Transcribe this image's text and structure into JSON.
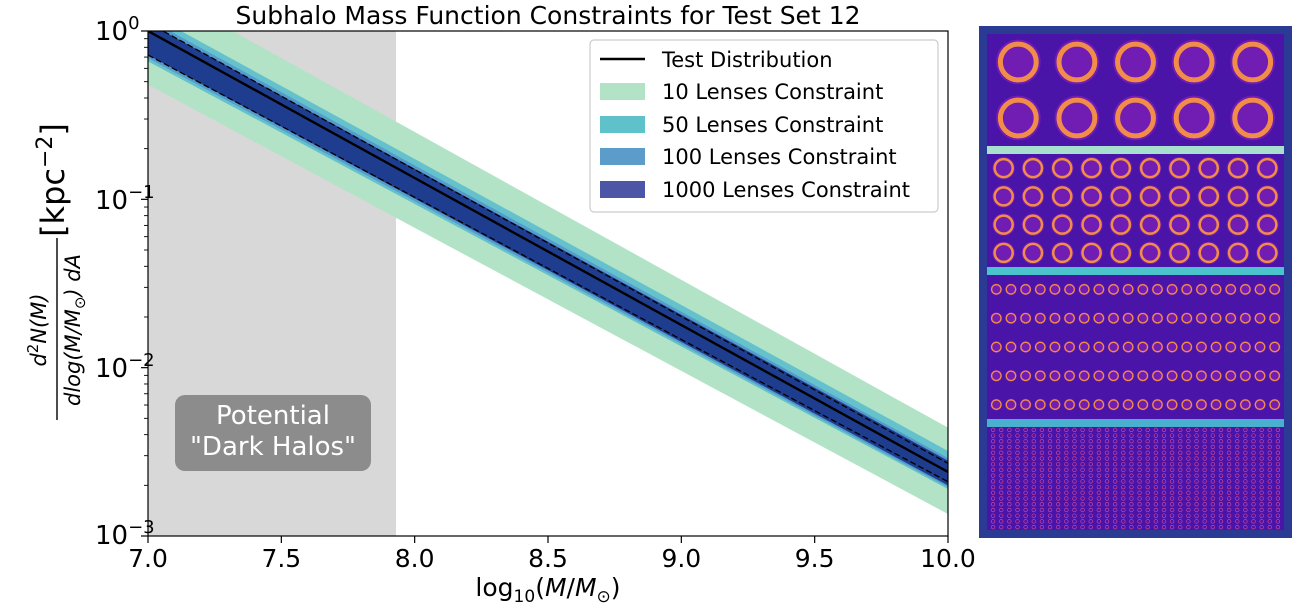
{
  "chart_data": {
    "type": "area",
    "title": "Subhalo Mass Function Constraints for Test Set 12",
    "xlabel": "log10(M/M⊙)",
    "ylabel": "d²N(M) / dlog(M/M⊙) dA [kpc⁻²]",
    "xlim": [
      7.0,
      10.0
    ],
    "ylim": [
      0.001,
      1.0
    ],
    "yscale": "log",
    "x_ticks": [
      7.0,
      7.5,
      8.0,
      8.5,
      9.0,
      9.5,
      10.0
    ],
    "x_tick_labels": [
      "7.0",
      "7.5",
      "8.0",
      "8.5",
      "9.0",
      "9.5",
      "10.0"
    ],
    "y_ticks": [
      0.001,
      0.01,
      0.1,
      1.0
    ],
    "shaded_region": {
      "x": [
        7.0,
        7.93
      ],
      "label_line1": "Potential",
      "label_line2": "\"Dark Halos\""
    },
    "legend_placement": "top-right",
    "series": [
      {
        "name": "Test Distribution",
        "kind": "line",
        "x": [
          7.0,
          10.0
        ],
        "y": [
          1.0,
          0.0024
        ]
      },
      {
        "name": "10 Lenses Constraint",
        "kind": "band",
        "color": "#b3e3c6",
        "x": [
          7.0,
          10.0
        ],
        "y_lower": [
          0.48,
          0.00135
        ],
        "y_upper": [
          1.9,
          0.0044
        ]
      },
      {
        "name": "50 Lenses Constraint",
        "kind": "band",
        "color": "#65c2cc",
        "x": [
          7.0,
          10.0
        ],
        "y_lower": [
          0.66,
          0.0019
        ],
        "y_upper": [
          1.28,
          0.0032
        ]
      },
      {
        "name": "100 Lenses Constraint",
        "kind": "band",
        "color": "#559ccc",
        "x": [
          7.0,
          10.0
        ],
        "y_lower": [
          0.69,
          0.00195
        ],
        "y_upper": [
          1.18,
          0.0029
        ]
      },
      {
        "name": "1000 Lenses Constraint",
        "kind": "band",
        "color": "#1f3d8f",
        "x": [
          7.0,
          10.0
        ],
        "y_lower": [
          0.72,
          0.002
        ],
        "y_upper": [
          1.12,
          0.0028
        ]
      },
      {
        "name": "",
        "kind": "dashed",
        "x": [
          7.0,
          10.0
        ],
        "y": [
          0.72,
          0.0021
        ]
      },
      {
        "name": "",
        "kind": "dashed",
        "x": [
          7.0,
          10.0
        ],
        "y": [
          1.12,
          0.0027
        ]
      }
    ],
    "legend_colors": {
      "10 Lenses Constraint": "#b3e3c6",
      "50 Lenses Constraint": "#5fc2cb",
      "100 Lenses Constraint": "#5b9ccb",
      "1000 Lenses Constraint": "#4d56a6"
    },
    "shade_color": "#d8d8d8",
    "label_box_color": "#8c8c8c"
  },
  "lens_panel": {
    "frame_color": "#2b3a93",
    "background_color": "#4a14a8",
    "divider_colors": [
      "#a8e0d0",
      "#4cc2cd",
      "#4ab0d0"
    ],
    "sections": [
      {
        "name": "10 lenses",
        "rows": 2,
        "cols": 5
      },
      {
        "name": "50 lenses",
        "rows": 4,
        "cols": 10
      },
      {
        "name": "100 lenses",
        "rows": 5,
        "cols": 20
      },
      {
        "name": "1000 lenses",
        "rows": 18,
        "cols": 36
      }
    ]
  }
}
